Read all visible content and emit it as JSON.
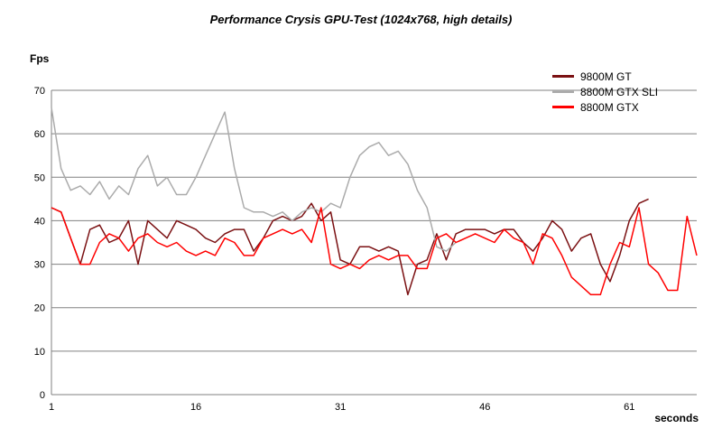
{
  "title": "Performance Crysis GPU-Test (1024x768, high details)",
  "ylabel": "Fps",
  "xlabel": "seconds",
  "chart_data": {
    "type": "line",
    "title": "Performance Crysis GPU-Test (1024x768, high details)",
    "xlabel": "seconds",
    "ylabel": "Fps",
    "ylim": [
      0,
      70
    ],
    "yticks": [
      0,
      10,
      20,
      30,
      40,
      50,
      60,
      70
    ],
    "xticks": [
      1,
      16,
      31,
      46,
      61
    ],
    "x_start": 1,
    "x_end": 68,
    "grid": "horizontal",
    "grid_color": "#808080",
    "legend_position": "top-right",
    "series": [
      {
        "name": "9800M GT",
        "color": "#7B1113",
        "x_start": 1,
        "values": [
          43,
          42,
          36,
          30,
          38,
          39,
          35,
          36,
          40,
          30,
          40,
          38,
          36,
          40,
          39,
          38,
          36,
          35,
          37,
          38,
          38,
          33,
          36,
          40,
          41,
          40,
          41,
          44,
          40,
          42,
          31,
          30,
          34,
          34,
          33,
          34,
          33,
          23,
          30,
          31,
          37,
          31,
          37,
          38,
          38,
          38,
          37,
          38,
          38,
          35,
          33,
          36,
          40,
          38,
          33,
          36,
          37,
          30,
          26,
          32,
          40,
          44,
          45
        ]
      },
      {
        "name": "8800M GTX SLI",
        "color": "#ABABAB",
        "x_start": 1,
        "values": [
          66,
          52,
          47,
          48,
          46,
          49,
          45,
          48,
          46,
          52,
          55,
          48,
          50,
          46,
          46,
          50,
          55,
          60,
          65,
          52,
          43,
          42,
          42,
          41,
          42,
          40,
          42,
          43,
          42,
          44,
          43,
          50,
          55,
          57,
          58,
          55,
          56,
          53,
          47,
          43,
          34,
          33,
          35
        ]
      },
      {
        "name": "8800M GTX",
        "color": "#FF0000",
        "x_start": 1,
        "values": [
          43,
          42,
          36,
          30,
          30,
          35,
          37,
          36,
          33,
          36,
          37,
          35,
          34,
          35,
          33,
          32,
          33,
          32,
          36,
          35,
          32,
          32,
          36,
          37,
          38,
          37,
          38,
          35,
          43,
          30,
          29,
          30,
          29,
          31,
          32,
          31,
          32,
          32,
          29,
          29,
          36,
          37,
          35,
          36,
          37,
          36,
          35,
          38,
          36,
          35,
          30,
          37,
          36,
          32,
          27,
          25,
          23,
          23,
          30,
          35,
          34,
          43,
          30,
          28,
          24,
          24,
          41,
          32
        ]
      }
    ]
  }
}
